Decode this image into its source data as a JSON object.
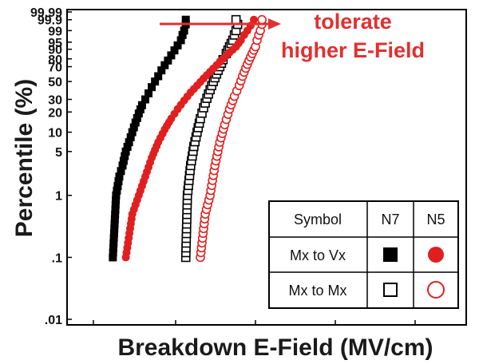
{
  "chart_data": {
    "type": "scatter",
    "title": "",
    "xlabel": "Breakdown E-Field (MV/cm)",
    "ylabel": "Percentile (%)",
    "y_scale": "weibull-probability",
    "y_ticks": [
      "99.99",
      "99.9",
      "99",
      "95",
      "90",
      "80",
      "70",
      "50",
      "30",
      "20",
      "10",
      "5",
      "1",
      ".1",
      ".01"
    ],
    "x_ticks_shown": false,
    "x_range_relative": [
      0,
      100
    ],
    "annotation": {
      "lines": [
        "tolerate",
        "higher E-Field"
      ],
      "arrow": "right",
      "color": "#e03030"
    },
    "series": [
      {
        "name": "N7 Mx to Vx",
        "marker": "square-filled",
        "color": "#000000",
        "points": [
          [
            12,
            0.1
          ],
          [
            14,
            1
          ],
          [
            16,
            2
          ],
          [
            18,
            3
          ],
          [
            20,
            5
          ],
          [
            22,
            7
          ],
          [
            24,
            10
          ],
          [
            26,
            14
          ],
          [
            28,
            19
          ],
          [
            30,
            25
          ],
          [
            32,
            30
          ],
          [
            34,
            36
          ],
          [
            36,
            43
          ],
          [
            38,
            50
          ],
          [
            40,
            57
          ],
          [
            42,
            65
          ],
          [
            44,
            72
          ],
          [
            46,
            78
          ],
          [
            48,
            84
          ],
          [
            50,
            89
          ],
          [
            52,
            93
          ],
          [
            54,
            96
          ],
          [
            55,
            98
          ],
          [
            56,
            99
          ],
          [
            57,
            99.7
          ],
          [
            57,
            99.9
          ]
        ]
      },
      {
        "name": "N7 Mx to Mx",
        "marker": "square-open",
        "color": "#000000",
        "points": [
          [
            57,
            0.1
          ],
          [
            58,
            1
          ],
          [
            60,
            3
          ],
          [
            62,
            6
          ],
          [
            64,
            10
          ],
          [
            66,
            16
          ],
          [
            68,
            23
          ],
          [
            70,
            31
          ],
          [
            72,
            40
          ],
          [
            74,
            50
          ],
          [
            76,
            60
          ],
          [
            78,
            70
          ],
          [
            80,
            79
          ],
          [
            82,
            86
          ],
          [
            84,
            92
          ],
          [
            86,
            96
          ],
          [
            87,
            98
          ],
          [
            88,
            99
          ],
          [
            89,
            99.7
          ],
          [
            88,
            99.9
          ]
        ]
      },
      {
        "name": "N5 Mx to Vx",
        "marker": "circle-filled",
        "color": "#e02020",
        "points": [
          [
            20,
            0.1
          ],
          [
            24,
            0.5
          ],
          [
            28,
            1
          ],
          [
            32,
            2
          ],
          [
            36,
            4
          ],
          [
            40,
            7
          ],
          [
            44,
            11
          ],
          [
            48,
            16
          ],
          [
            52,
            22
          ],
          [
            56,
            29
          ],
          [
            60,
            37
          ],
          [
            64,
            45
          ],
          [
            68,
            54
          ],
          [
            72,
            63
          ],
          [
            76,
            72
          ],
          [
            80,
            80
          ],
          [
            84,
            87
          ],
          [
            88,
            92
          ],
          [
            91,
            96
          ],
          [
            93,
            98
          ],
          [
            95,
            99
          ],
          [
            97,
            99.6
          ],
          [
            99,
            99.9
          ]
        ]
      },
      {
        "name": "N5 Mx to Mx",
        "marker": "circle-open",
        "color": "#e02020",
        "points": [
          [
            66,
            0.1
          ],
          [
            69,
            0.5
          ],
          [
            72,
            1
          ],
          [
            75,
            3
          ],
          [
            78,
            7
          ],
          [
            81,
            13
          ],
          [
            84,
            22
          ],
          [
            87,
            33
          ],
          [
            90,
            45
          ],
          [
            92,
            57
          ],
          [
            94,
            68
          ],
          [
            96,
            78
          ],
          [
            98,
            86
          ],
          [
            100,
            92
          ],
          [
            101,
            96
          ],
          [
            102,
            98
          ],
          [
            103,
            99
          ],
          [
            104,
            99.7
          ],
          [
            104,
            99.9
          ]
        ]
      }
    ],
    "legend": {
      "placement": "bottom-right",
      "headers": [
        "Symbol",
        "N7",
        "N5"
      ],
      "rows": [
        {
          "label": "Mx to Vx",
          "n7": "square-filled",
          "n5": "circle-filled"
        },
        {
          "label": "Mx to Mx",
          "n7": "square-open",
          "n5": "circle-open"
        }
      ]
    }
  }
}
